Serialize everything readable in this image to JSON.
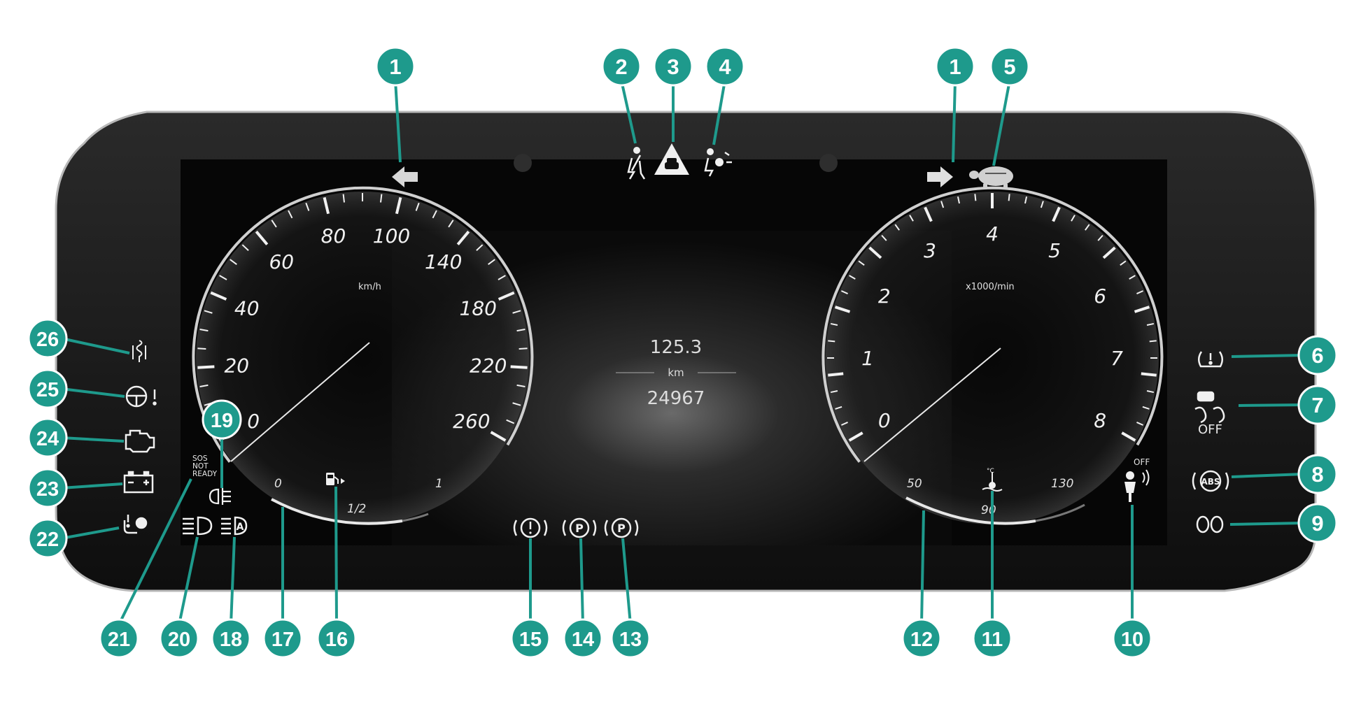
{
  "colors": {
    "callout_fill": "#1e9a8c",
    "callout_text": "#ffffff",
    "callout_line": "#1e9a8c",
    "bezel": "#1a1a1a",
    "screen": "#0a0a0a",
    "gauge_text": "#eeeeee",
    "indicator": "#ffffff"
  },
  "speedometer": {
    "unit": "km/h",
    "ticks": [
      {
        "label": "0",
        "value": 0
      },
      {
        "label": "20",
        "value": 20
      },
      {
        "label": "40",
        "value": 40
      },
      {
        "label": "60",
        "value": 60
      },
      {
        "label": "80",
        "value": 80
      },
      {
        "label": "100",
        "value": 100
      },
      {
        "label": "140",
        "value": 140
      },
      {
        "label": "180",
        "value": 180
      },
      {
        "label": "220",
        "value": 220
      },
      {
        "label": "260",
        "value": 260
      }
    ],
    "fuel_scale": {
      "icon": "fuel-pump-icon",
      "labels": [
        "0",
        "1/2",
        "1"
      ]
    }
  },
  "tachometer": {
    "unit": "x1000/min",
    "ticks": [
      {
        "label": "0",
        "value": 0
      },
      {
        "label": "1",
        "value": 1
      },
      {
        "label": "2",
        "value": 2
      },
      {
        "label": "3",
        "value": 3
      },
      {
        "label": "4",
        "value": 4
      },
      {
        "label": "5",
        "value": 5
      },
      {
        "label": "6",
        "value": 6
      },
      {
        "label": "7",
        "value": 7
      },
      {
        "label": "8",
        "value": 8
      }
    ],
    "temperature_scale": {
      "icon": "coolant-temperature-icon",
      "labels": [
        "50",
        "90",
        "130"
      ]
    }
  },
  "odometer": {
    "trip": "125.3",
    "unit": "km",
    "total": "24967"
  },
  "sos_label": [
    "SOS",
    "NOT",
    "READY"
  ],
  "esp_off_label": "OFF",
  "tachometer_off_label": "OFF",
  "callouts": [
    {
      "number": "1",
      "name": "callout-1-left"
    },
    {
      "number": "1",
      "name": "callout-1-right"
    },
    {
      "number": "2",
      "name": "callout-2"
    },
    {
      "number": "3",
      "name": "callout-3"
    },
    {
      "number": "4",
      "name": "callout-4"
    },
    {
      "number": "5",
      "name": "callout-5"
    },
    {
      "number": "6",
      "name": "callout-6"
    },
    {
      "number": "7",
      "name": "callout-7"
    },
    {
      "number": "8",
      "name": "callout-8"
    },
    {
      "number": "9",
      "name": "callout-9"
    },
    {
      "number": "10",
      "name": "callout-10"
    },
    {
      "number": "11",
      "name": "callout-11"
    },
    {
      "number": "12",
      "name": "callout-12"
    },
    {
      "number": "13",
      "name": "callout-13"
    },
    {
      "number": "14",
      "name": "callout-14"
    },
    {
      "number": "15",
      "name": "callout-15"
    },
    {
      "number": "16",
      "name": "callout-16"
    },
    {
      "number": "17",
      "name": "callout-17"
    },
    {
      "number": "18",
      "name": "callout-18"
    },
    {
      "number": "19",
      "name": "callout-19"
    },
    {
      "number": "20",
      "name": "callout-20"
    },
    {
      "number": "21",
      "name": "callout-21"
    },
    {
      "number": "22",
      "name": "callout-22"
    },
    {
      "number": "23",
      "name": "callout-23"
    },
    {
      "number": "24",
      "name": "callout-24"
    },
    {
      "number": "25",
      "name": "callout-25"
    },
    {
      "number": "26",
      "name": "callout-26"
    }
  ],
  "indicator_icons": [
    "turn-signal-left-icon",
    "turn-signal-right-icon",
    "seat-belt-icon",
    "distance-warning-icon",
    "airbag-icon",
    "limp-mode-turtle-icon",
    "tire-pressure-icon",
    "esp-off-icon",
    "abs-icon",
    "rear-fog-light-icon",
    "passenger-airbag-off-icon",
    "coolant-temperature-icon",
    "brake-warning-icon",
    "parking-brake-icon",
    "electric-parking-brake-icon",
    "fuel-pump-icon",
    "adaptive-high-beam-icon",
    "front-fog-light-icon",
    "low-beam-icon",
    "sos-not-ready-text",
    "brake-fluid-icon",
    "battery-icon",
    "check-engine-icon",
    "steering-warning-icon",
    "glow-plug-icon"
  ]
}
